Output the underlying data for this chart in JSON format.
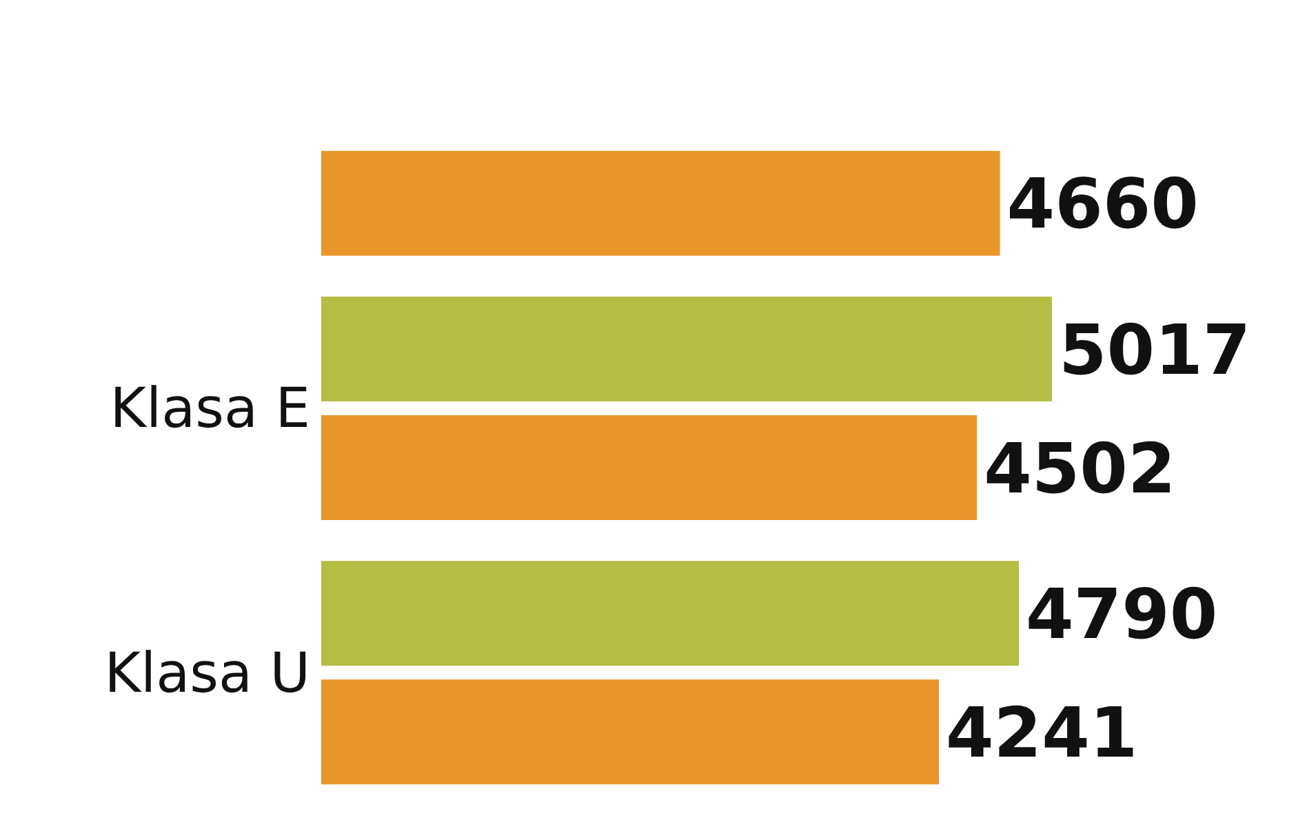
{
  "chart_data": {
    "type": "bar",
    "orientation": "horizontal",
    "categories": [
      null,
      "Klasa E",
      "Klasa U"
    ],
    "series": [
      {
        "color": "#b5bd45",
        "values": [
          null,
          5017,
          4790
        ]
      },
      {
        "color": "#e8952a",
        "values": [
          4660,
          4502,
          4241
        ]
      }
    ],
    "data_labels": true,
    "grid": false,
    "legend": false,
    "tick_labels": "y"
  }
}
